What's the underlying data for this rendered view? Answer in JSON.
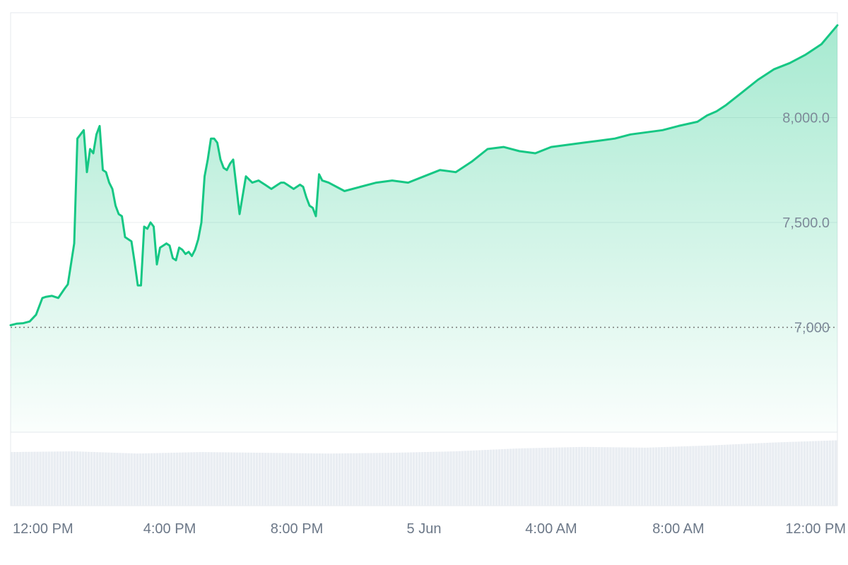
{
  "chart_data": {
    "type": "area",
    "line_color": "#16c784",
    "volume_color": "#e9edf2",
    "y_axis": {
      "position": "right",
      "ticks": [
        {
          "value": 8000,
          "label": "8,000.0"
        },
        {
          "value": 7500,
          "label": "7,500.0"
        }
      ],
      "baseline": {
        "value": 7000,
        "label": "7,000"
      },
      "ylim": [
        6500,
        8500
      ]
    },
    "x_axis": {
      "xlim": [
        0,
        26
      ],
      "ticks": [
        {
          "value": 1,
          "label": "12:00 PM"
        },
        {
          "value": 5,
          "label": "4:00 PM"
        },
        {
          "value": 9,
          "label": "8:00 PM"
        },
        {
          "value": 13,
          "label": "5 Jun"
        },
        {
          "value": 17,
          "label": "4:00 AM"
        },
        {
          "value": 21,
          "label": "8:00 AM"
        },
        {
          "value": 25,
          "label": "12:00 PM"
        }
      ]
    },
    "series": [
      {
        "x": [
          0,
          0.2,
          0.4,
          0.6,
          0.8,
          1,
          1.1,
          1.3,
          1.5,
          1.7,
          1.8,
          2,
          2.1,
          2.3,
          2.4,
          2.5,
          2.6,
          2.7,
          2.8,
          2.9,
          3,
          3.1,
          3.2,
          3.3,
          3.4,
          3.5,
          3.6,
          3.7,
          3.8,
          3.9,
          4,
          4.1,
          4.2,
          4.3,
          4.4,
          4.5,
          4.6,
          4.7,
          4.8,
          4.9,
          5,
          5.1,
          5.2,
          5.3,
          5.4,
          5.5,
          5.6,
          5.7,
          5.8,
          5.9,
          6,
          6.1,
          6.2,
          6.3,
          6.4,
          6.5,
          6.6,
          6.7,
          6.8,
          6.9,
          7,
          7.2,
          7.4,
          7.6,
          7.8,
          7.9,
          8,
          8.1,
          8.2,
          8.3,
          8.4,
          8.5,
          8.6,
          8.7,
          8.8,
          8.9,
          9,
          9.1,
          9.2,
          9.3,
          9.4,
          9.5,
          9.6,
          9.7,
          9.8,
          10,
          10.5,
          11,
          11.5,
          12,
          12.5,
          13,
          13.5,
          14,
          14.5,
          15,
          15.5,
          16,
          16.5,
          17,
          17.5,
          18,
          18.5,
          19,
          19.5,
          20,
          20.5,
          21,
          21.3,
          21.6,
          21.9,
          22.2,
          22.5,
          23,
          23.5,
          24,
          24.5,
          25,
          25.5,
          26
        ],
        "values": [
          7010,
          7018,
          7020,
          7028,
          7060,
          7140,
          7145,
          7150,
          7140,
          7185,
          7205,
          7400,
          7900,
          7940,
          7740,
          7850,
          7830,
          7920,
          7960,
          7750,
          7740,
          7690,
          7660,
          7580,
          7540,
          7530,
          7430,
          7420,
          7410,
          7310,
          7200,
          7200,
          7480,
          7470,
          7500,
          7480,
          7300,
          7380,
          7390,
          7400,
          7390,
          7330,
          7320,
          7380,
          7370,
          7350,
          7360,
          7340,
          7370,
          7420,
          7500,
          7720,
          7800,
          7900,
          7900,
          7880,
          7800,
          7760,
          7750,
          7780,
          7800,
          7540,
          7720,
          7690,
          7700,
          7690,
          7680,
          7670,
          7660,
          7670,
          7680,
          7690,
          7690,
          7680,
          7670,
          7660,
          7670,
          7680,
          7670,
          7620,
          7580,
          7570,
          7530,
          7730,
          7700,
          7690,
          7650,
          7670,
          7690,
          7700,
          7690,
          7720,
          7750,
          7740,
          7790,
          7850,
          7860,
          7840,
          7830,
          7860,
          7870,
          7880,
          7890,
          7900,
          7920,
          7930,
          7940,
          7960,
          7970,
          7980,
          8010,
          8030,
          8060,
          8120,
          8180,
          8230,
          8260,
          8300,
          8350,
          8440
        ]
      }
    ],
    "volume": {
      "x": [
        0,
        2,
        4,
        6,
        8,
        10,
        12,
        14,
        16,
        18,
        20,
        22,
        24,
        26
      ],
      "values": [
        0.73,
        0.74,
        0.71,
        0.73,
        0.72,
        0.71,
        0.72,
        0.74,
        0.78,
        0.8,
        0.79,
        0.82,
        0.86,
        0.89
      ]
    }
  }
}
